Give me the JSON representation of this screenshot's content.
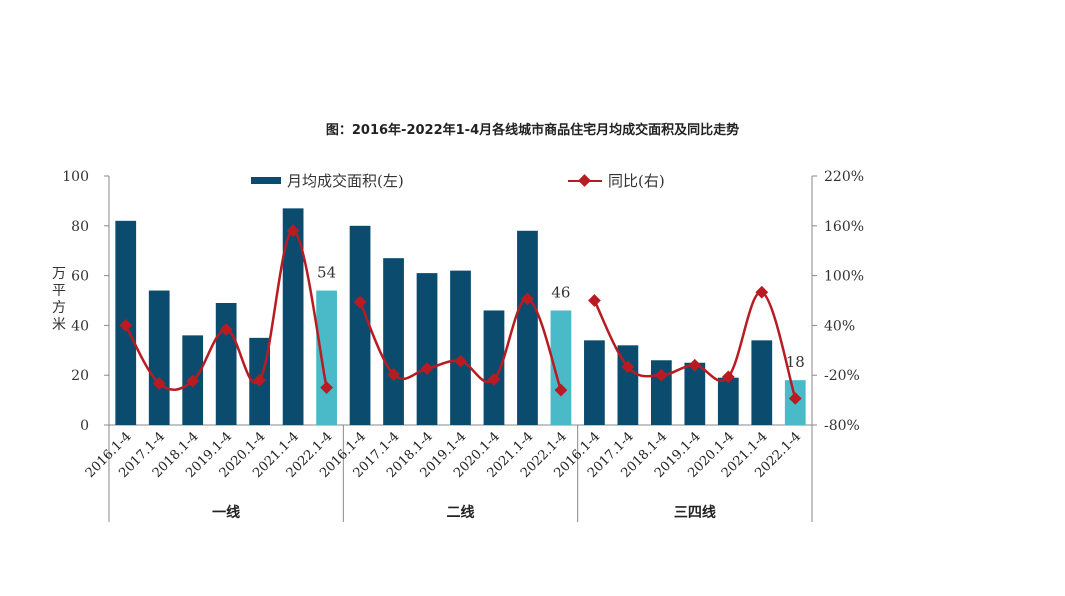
{
  "title": "图：2016年-2022年1-4月各线城市商品住宅月均成交面积及同比走势",
  "legend": {
    "bar_label": "月均成交面积(左)",
    "line_label": "同比(右)"
  },
  "colors": {
    "bar": "#0b4c6e",
    "bar_highlight": "#4bbac8",
    "line": "#b81c22"
  },
  "left_axis_label": "万平方米",
  "chart_data": {
    "type": "bar",
    "groups": [
      "一线",
      "二线",
      "三四线"
    ],
    "categories": [
      "2016.1-4",
      "2017.1-4",
      "2018.1-4",
      "2019.1-4",
      "2020.1-4",
      "2021.1-4",
      "2022.1-4"
    ],
    "series": [
      {
        "name": "月均成交面积(左)",
        "type": "bar",
        "axis": "left",
        "values": [
          [
            82,
            54,
            36,
            49,
            35,
            87,
            54
          ],
          [
            80,
            67,
            61,
            62,
            46,
            78,
            46
          ],
          [
            34,
            32,
            26,
            25,
            19,
            34,
            18
          ]
        ]
      },
      {
        "name": "同比(右)",
        "type": "line",
        "axis": "right",
        "unit": "%",
        "values": [
          [
            40,
            -30,
            -27,
            35,
            -26,
            154,
            -35
          ],
          [
            68,
            -19,
            -12,
            -3,
            -25,
            72,
            -38
          ],
          [
            70,
            -10,
            -20,
            -8,
            -22,
            80,
            -48
          ]
        ]
      }
    ],
    "data_labels": [
      {
        "group": 0,
        "category": 6,
        "text": "54"
      },
      {
        "group": 1,
        "category": 6,
        "text": "46"
      },
      {
        "group": 2,
        "category": 6,
        "text": "18"
      }
    ],
    "y_left": {
      "ticks": [
        "0",
        "20",
        "40",
        "60",
        "80",
        "100"
      ],
      "range": [
        0,
        100
      ]
    },
    "y_right": {
      "ticks": [
        "-80%",
        "-20%",
        "40%",
        "100%",
        "160%",
        "220%"
      ],
      "range": [
        -80,
        220
      ]
    },
    "grid": false,
    "legend_position": "top"
  }
}
